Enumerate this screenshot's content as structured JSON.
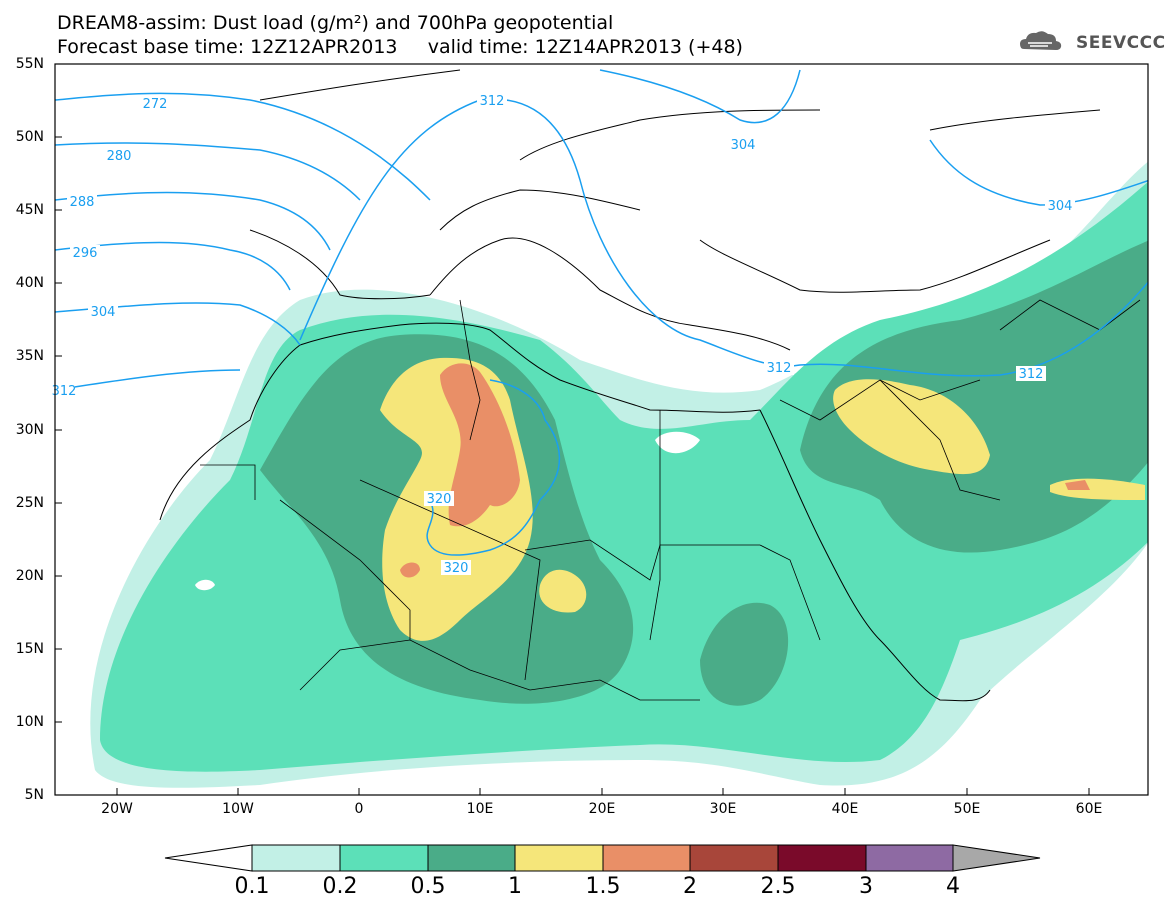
{
  "header": {
    "line1": "DREAM8-assim: Dust load (g/m²) and 700hPa geopotential",
    "line2": "Forecast base time: 12Z12APR2013     valid time: 12Z14APR2013 (+48)",
    "logo_text": "SEEVCCC"
  },
  "axes": {
    "lat_labels": [
      "55N",
      "50N",
      "45N",
      "40N",
      "35N",
      "30N",
      "25N",
      "20N",
      "15N",
      "10N",
      "5N"
    ],
    "lon_labels": [
      "20W",
      "10W",
      "0",
      "10E",
      "20E",
      "30E",
      "40E",
      "50E",
      "60E"
    ]
  },
  "contours": {
    "labels": [
      "272",
      "280",
      "288",
      "296",
      "304",
      "312",
      "312",
      "304",
      "304",
      "312",
      "312",
      "320",
      "320"
    ]
  },
  "colorbar": {
    "ticks": [
      "0.1",
      "0.2",
      "0.5",
      "1",
      "1.5",
      "2",
      "2.5",
      "3",
      "4"
    ],
    "colors": [
      "#c2f0e6",
      "#5ce0b8",
      "#4aac88",
      "#f5e67a",
      "#e98f67",
      "#a8463a",
      "#7a0a2a",
      "#8e6aa3"
    ],
    "low_color": "#ffffff",
    "high_color": "#a8a8a8"
  },
  "colors": {
    "contour_line": "#1a9ff0",
    "border": "#000000"
  }
}
